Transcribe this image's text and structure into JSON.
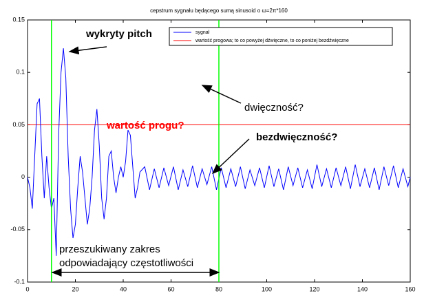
{
  "chart_data": {
    "type": "line",
    "title": "cepstrum sygnału będącego sumą sinusoid o ω=2π*160",
    "x": [
      0,
      1,
      2,
      3,
      4,
      5,
      6,
      7,
      8,
      9,
      10,
      11,
      12,
      13,
      14,
      15,
      16,
      17,
      18,
      19,
      20,
      21,
      22,
      23,
      24,
      25,
      26,
      27,
      28,
      29,
      30,
      31,
      32,
      33,
      34,
      35,
      36,
      37,
      38,
      39,
      40,
      41,
      42,
      43,
      44,
      45,
      46,
      47,
      49,
      51,
      53,
      55,
      57,
      59,
      61,
      63,
      65,
      67,
      69,
      71,
      73,
      75,
      77,
      79,
      81,
      83,
      85,
      87,
      89,
      91,
      93,
      95,
      97,
      99,
      101,
      103,
      105,
      107,
      109,
      111,
      113,
      115,
      117,
      119,
      121,
      123,
      125,
      127,
      129,
      131,
      133,
      135,
      137,
      139,
      141,
      143,
      145,
      147,
      149,
      151,
      153,
      155,
      157,
      159,
      160
    ],
    "series": [
      {
        "name": "sygnał",
        "color": "#0000ff",
        "values": [
          0.0,
          -0.01,
          -0.03,
          0.02,
          0.07,
          0.075,
          0.02,
          -0.02,
          0.02,
          -0.01,
          -0.03,
          -0.02,
          -0.075,
          0.04,
          0.1,
          0.123,
          0.095,
          0.02,
          -0.03,
          -0.058,
          -0.045,
          -0.01,
          0.02,
          0.005,
          -0.02,
          -0.045,
          -0.03,
          0.0,
          0.045,
          0.065,
          0.03,
          -0.02,
          -0.04,
          -0.02,
          0.02,
          0.025,
          0.0,
          -0.015,
          0.0,
          0.01,
          0.0,
          0.015,
          0.045,
          0.04,
          0.01,
          -0.02,
          -0.01,
          0.005,
          0.01,
          -0.012,
          0.008,
          -0.01,
          0.009,
          -0.008,
          0.01,
          -0.012,
          0.007,
          -0.009,
          0.011,
          -0.01,
          0.008,
          -0.007,
          0.01,
          -0.012,
          0.009,
          -0.01,
          0.008,
          -0.009,
          0.01,
          -0.011,
          0.007,
          -0.008,
          0.009,
          -0.01,
          0.011,
          -0.009,
          0.008,
          -0.012,
          0.01,
          -0.008,
          0.009,
          -0.01,
          0.007,
          -0.011,
          0.012,
          -0.009,
          0.008,
          -0.01,
          0.009,
          -0.008,
          0.01,
          -0.011,
          0.012,
          -0.009,
          0.008,
          -0.01,
          0.009,
          -0.012,
          0.01,
          -0.008,
          0.011,
          -0.01,
          0.008,
          -0.009,
          0.0
        ]
      }
    ],
    "threshold": {
      "name": "wartość progowa; to co powyżej dźwięczne, to co poniżej bezdźwięczne",
      "color": "#ff0000",
      "value": 0.05
    },
    "vlines": {
      "color": "#00ff00",
      "values": [
        10,
        80
      ]
    },
    "xlim": [
      0,
      160
    ],
    "xticks": [
      0,
      20,
      40,
      60,
      80,
      100,
      120,
      140,
      160
    ],
    "ylim": [
      -0.1,
      0.15
    ],
    "yticks": [
      -0.1,
      -0.05,
      0,
      0.05,
      0.1,
      0.15
    ],
    "annotations": [
      "wykryty pitch",
      "dwięczność?",
      "wartość progu?",
      "bezdwięczność?",
      "przeszukiwany zakres",
      "odpowiadający częstotliwości"
    ]
  }
}
